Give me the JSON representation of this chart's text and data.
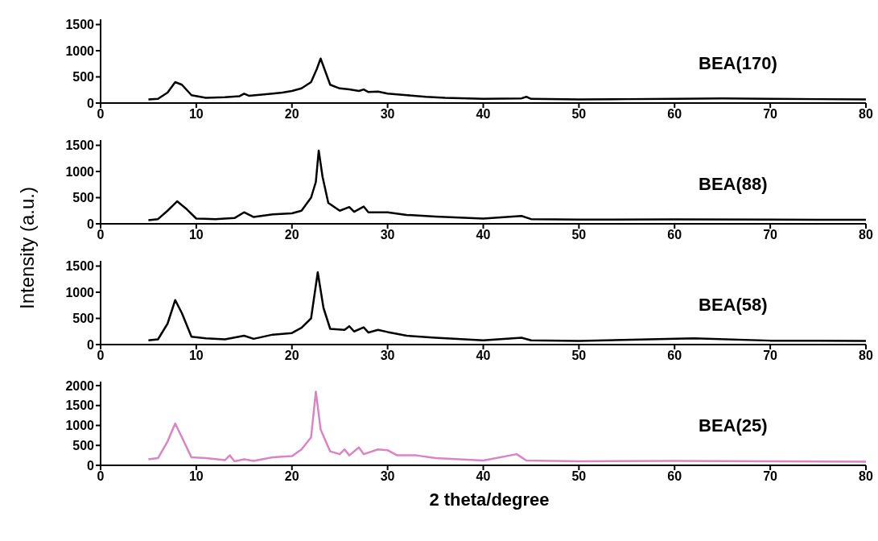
{
  "chart_data": [
    {
      "type": "line",
      "ylabel": "Intensity (a.u.)",
      "xlim": [
        0,
        80
      ],
      "xticks": [
        0,
        10,
        20,
        30,
        40,
        50,
        60,
        70,
        80
      ],
      "ylim": [
        0,
        1600
      ],
      "yticks": [
        0,
        500,
        1000,
        1500
      ],
      "series": [
        {
          "name": "BEA(170)",
          "color": "#000000",
          "x": [
            5,
            6,
            7,
            7.8,
            8.5,
            9.5,
            11,
            13,
            14.5,
            15,
            15.5,
            18,
            19,
            20,
            21,
            22,
            22.6,
            23,
            23.5,
            24,
            25,
            26,
            27,
            27.5,
            28,
            29,
            30,
            32,
            34,
            36,
            40,
            44,
            44.5,
            45,
            50,
            55,
            60,
            65,
            70,
            75,
            80
          ],
          "values": [
            70,
            80,
            200,
            400,
            350,
            150,
            100,
            110,
            130,
            180,
            140,
            180,
            200,
            230,
            280,
            400,
            650,
            850,
            600,
            350,
            280,
            260,
            230,
            260,
            210,
            220,
            180,
            150,
            120,
            100,
            80,
            90,
            120,
            80,
            70,
            75,
            80,
            90,
            80,
            75,
            70
          ]
        }
      ]
    },
    {
      "type": "line",
      "xlim": [
        0,
        80
      ],
      "xticks": [
        0,
        10,
        20,
        30,
        40,
        50,
        60,
        70,
        80
      ],
      "ylim": [
        0,
        1600
      ],
      "yticks": [
        0,
        500,
        1000,
        1500
      ],
      "series": [
        {
          "name": "BEA(88)",
          "color": "#000000",
          "x": [
            5,
            6,
            7,
            8,
            9,
            10,
            12,
            14,
            15,
            16,
            18,
            20,
            21,
            22,
            22.5,
            22.8,
            23.2,
            23.8,
            25,
            26,
            26.5,
            27.5,
            28,
            30,
            32,
            35,
            40,
            44,
            45,
            50,
            60,
            70,
            80
          ],
          "values": [
            70,
            90,
            250,
            430,
            280,
            100,
            90,
            110,
            220,
            130,
            180,
            200,
            250,
            500,
            800,
            1400,
            900,
            400,
            250,
            320,
            230,
            330,
            220,
            220,
            170,
            140,
            100,
            150,
            90,
            80,
            85,
            80,
            75
          ]
        }
      ]
    },
    {
      "type": "line",
      "xlim": [
        0,
        80
      ],
      "xticks": [
        0,
        10,
        20,
        30,
        40,
        50,
        60,
        70,
        80
      ],
      "ylim": [
        0,
        1600
      ],
      "yticks": [
        0,
        500,
        1000,
        1500
      ],
      "series": [
        {
          "name": "BEA(58)",
          "color": "#000000",
          "x": [
            5,
            6,
            7,
            7.8,
            8.5,
            9.5,
            11,
            13,
            15,
            16,
            18,
            20,
            21,
            22,
            22.7,
            23.3,
            24,
            25.5,
            26,
            26.5,
            27.5,
            28,
            29,
            30,
            32,
            35,
            40,
            44,
            45,
            50,
            62,
            70,
            80
          ],
          "values": [
            80,
            100,
            400,
            850,
            600,
            150,
            120,
            100,
            170,
            110,
            190,
            220,
            320,
            500,
            1380,
            700,
            300,
            280,
            350,
            250,
            330,
            230,
            280,
            240,
            170,
            130,
            80,
            130,
            80,
            70,
            120,
            75,
            70
          ]
        }
      ]
    },
    {
      "type": "line",
      "xlabel": "2 theta/degree",
      "xlim": [
        0,
        80
      ],
      "xticks": [
        0,
        10,
        20,
        30,
        40,
        50,
        60,
        70,
        80
      ],
      "ylim": [
        0,
        2100
      ],
      "yticks": [
        0,
        500,
        1000,
        1500,
        2000
      ],
      "series": [
        {
          "name": "BEA(25)",
          "color": "#d985c4",
          "x": [
            5,
            6,
            7,
            7.8,
            8.5,
            9.5,
            11,
            13,
            13.5,
            14,
            15,
            16,
            18,
            20,
            21,
            22,
            22.5,
            23,
            24,
            25,
            25.5,
            26,
            27,
            27.5,
            29,
            30,
            31,
            33,
            35,
            40,
            43.5,
            44.5,
            50,
            60,
            70,
            80
          ],
          "values": [
            150,
            180,
            600,
            1050,
            700,
            200,
            180,
            130,
            250,
            100,
            150,
            110,
            200,
            230,
            400,
            700,
            1850,
            900,
            350,
            280,
            400,
            250,
            450,
            280,
            400,
            380,
            250,
            250,
            180,
            120,
            280,
            120,
            100,
            110,
            100,
            90
          ]
        }
      ]
    }
  ]
}
